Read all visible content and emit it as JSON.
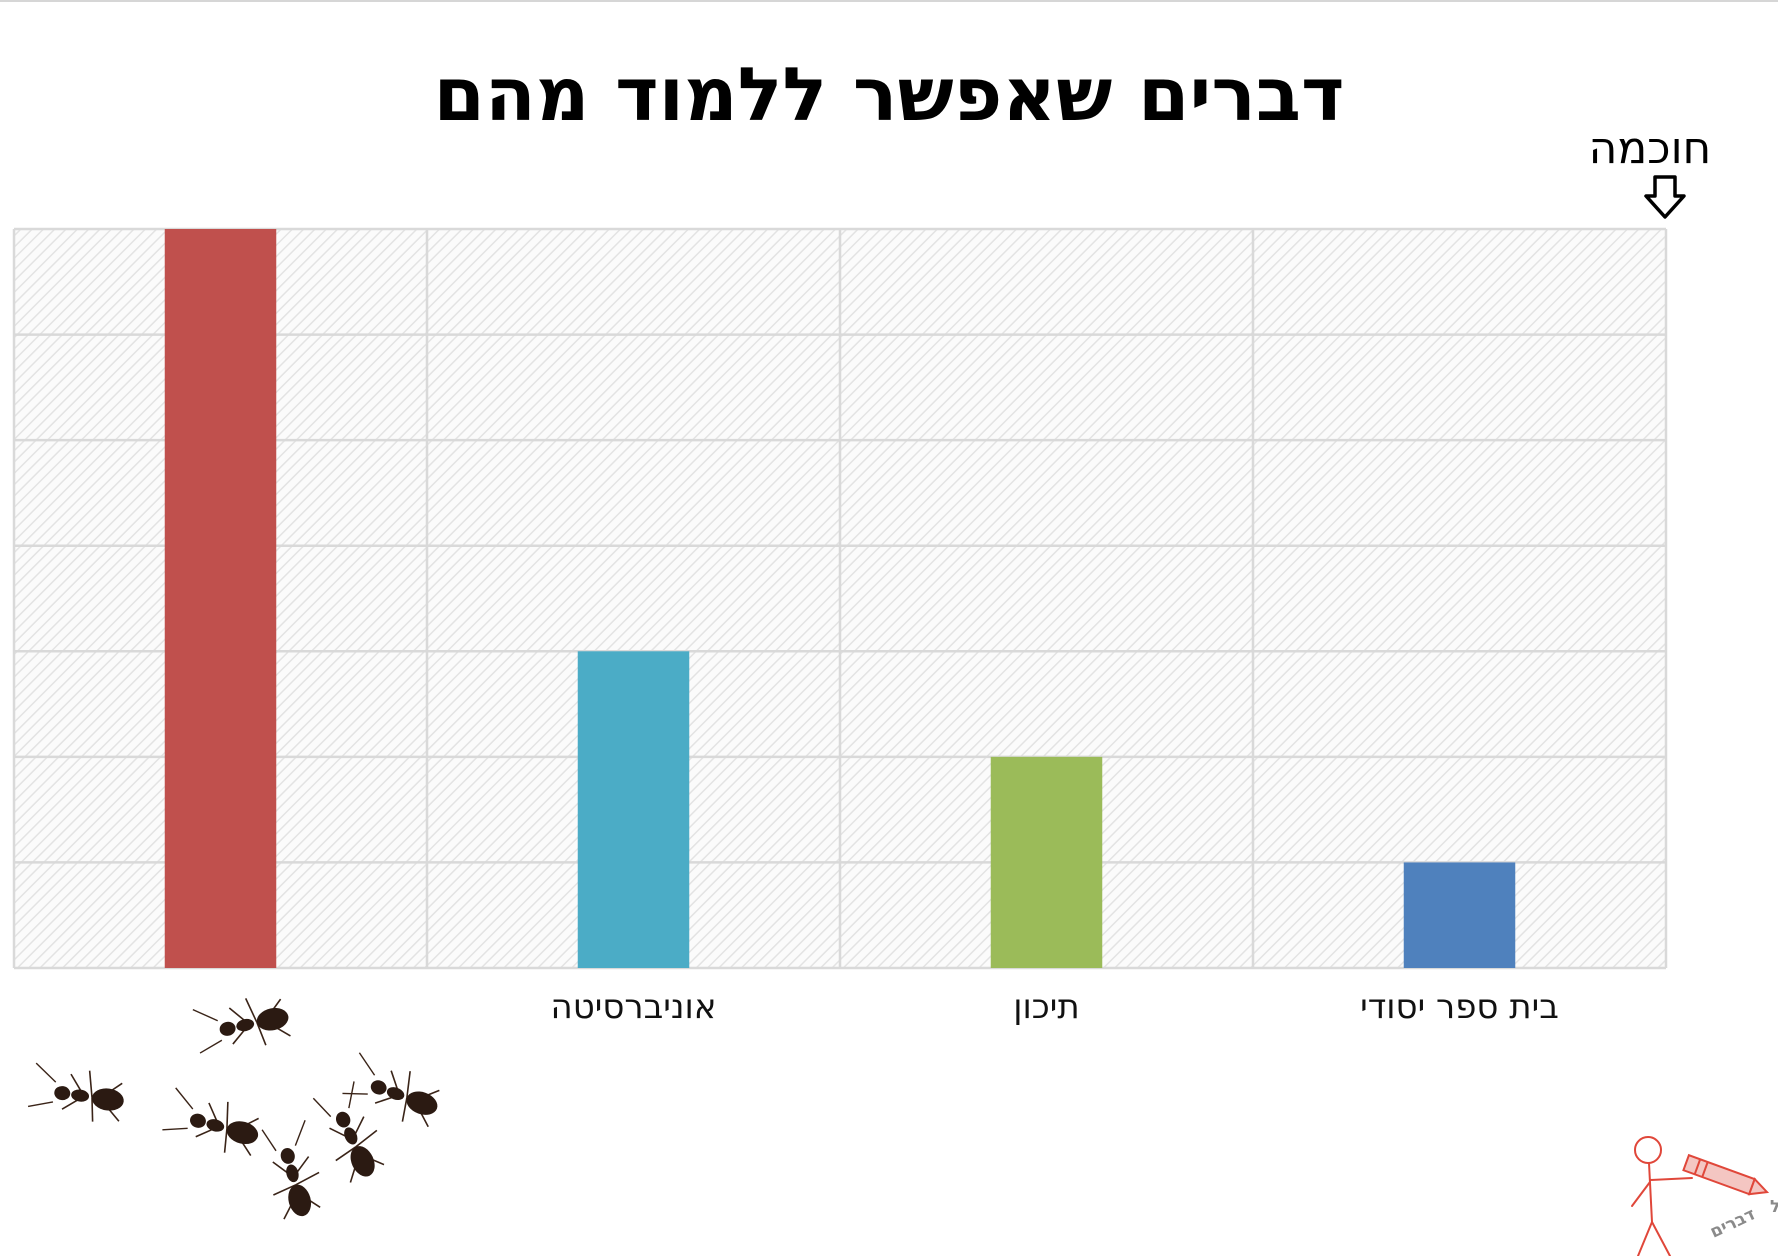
{
  "chart_data": {
    "type": "bar",
    "title": "דברים שאפשר ללמוד מהם",
    "ylabel": "חוכמה",
    "xlabel": "",
    "categories": [
      "נמלים",
      "אוניברסיטה",
      "תיכון",
      "בית ספר יסודי"
    ],
    "category_labels_shown": [
      "",
      "אוניברסיטה",
      "תיכון",
      "בית ספר יסודי"
    ],
    "values": [
      7,
      3,
      2,
      1
    ],
    "colors": [
      "#c0504d",
      "#4bacc6",
      "#9bbb59",
      "#4f81bd"
    ],
    "ylim": [
      0,
      7
    ],
    "grid": true,
    "direction": "rtl"
  },
  "icons": {
    "ants": "ants-illustration",
    "logo": "stick-figure-pencil-logo",
    "arrow": "down-arrow-icon"
  },
  "logo_text": {
    "line1": "גרגים של",
    "line2": "דברים"
  }
}
